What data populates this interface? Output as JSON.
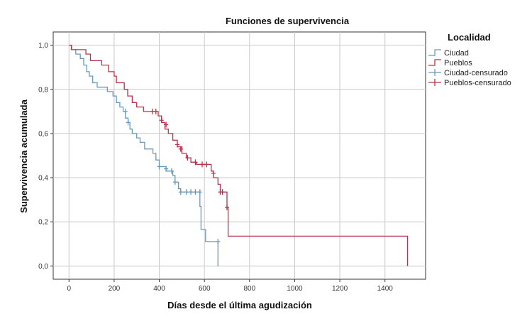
{
  "chart_data": {
    "type": "line",
    "title": "Funciones de supervivencia",
    "xlabel": "Días desde el última agudización",
    "ylabel": "Supervivencia acumulada",
    "xlim": [
      -70,
      1580
    ],
    "ylim": [
      -0.06,
      1.06
    ],
    "x_ticks": [
      "0",
      "200",
      "400",
      "600",
      "800",
      "1000",
      "1200",
      "1400"
    ],
    "y_ticks": [
      "0,0",
      "0,2",
      "0,4",
      "0,6",
      "0,8",
      "1,0"
    ],
    "grid": true,
    "legend": {
      "title": "Localidad",
      "position": "right",
      "entries": [
        "Ciudad",
        "Pueblos",
        "Ciudad-censurado",
        "Pueblos-censurado"
      ]
    },
    "series": [
      {
        "name": "Ciudad",
        "color": "#6699c2",
        "steps": [
          [
            0,
            1.0
          ],
          [
            12,
            0.98
          ],
          [
            30,
            0.96
          ],
          [
            50,
            0.94
          ],
          [
            65,
            0.91
          ],
          [
            78,
            0.88
          ],
          [
            90,
            0.86
          ],
          [
            105,
            0.83
          ],
          [
            125,
            0.81
          ],
          [
            170,
            0.79
          ],
          [
            195,
            0.77
          ],
          [
            210,
            0.74
          ],
          [
            225,
            0.72
          ],
          [
            240,
            0.7
          ],
          [
            250,
            0.67
          ],
          [
            262,
            0.65
          ],
          [
            270,
            0.62
          ],
          [
            280,
            0.6
          ],
          [
            300,
            0.58
          ],
          [
            315,
            0.56
          ],
          [
            335,
            0.53
          ],
          [
            372,
            0.51
          ],
          [
            385,
            0.48
          ],
          [
            400,
            0.45
          ],
          [
            430,
            0.43
          ],
          [
            460,
            0.41
          ],
          [
            470,
            0.38
          ],
          [
            485,
            0.35
          ],
          [
            495,
            0.335
          ],
          [
            580,
            0.27
          ],
          [
            585,
            0.165
          ],
          [
            605,
            0.11
          ],
          [
            660,
            0.0
          ]
        ],
        "end_x": 662,
        "censored": [
          [
            250,
            0.7
          ],
          [
            262,
            0.65
          ],
          [
            400,
            0.45
          ],
          [
            430,
            0.44
          ],
          [
            455,
            0.43
          ],
          [
            470,
            0.38
          ],
          [
            495,
            0.335
          ],
          [
            520,
            0.335
          ],
          [
            540,
            0.335
          ],
          [
            560,
            0.335
          ],
          [
            580,
            0.335
          ],
          [
            660,
            0.11
          ]
        ]
      },
      {
        "name": "Pueblos",
        "color": "#b8334b",
        "steps": [
          [
            0,
            1.0
          ],
          [
            10,
            0.98
          ],
          [
            75,
            0.96
          ],
          [
            95,
            0.93
          ],
          [
            145,
            0.91
          ],
          [
            175,
            0.88
          ],
          [
            200,
            0.86
          ],
          [
            210,
            0.83
          ],
          [
            245,
            0.8
          ],
          [
            260,
            0.77
          ],
          [
            280,
            0.74
          ],
          [
            300,
            0.72
          ],
          [
            330,
            0.7
          ],
          [
            395,
            0.68
          ],
          [
            410,
            0.65
          ],
          [
            425,
            0.62
          ],
          [
            440,
            0.6
          ],
          [
            460,
            0.57
          ],
          [
            480,
            0.54
          ],
          [
            500,
            0.51
          ],
          [
            520,
            0.49
          ],
          [
            540,
            0.47
          ],
          [
            565,
            0.46
          ],
          [
            630,
            0.43
          ],
          [
            640,
            0.4
          ],
          [
            660,
            0.37
          ],
          [
            670,
            0.335
          ],
          [
            700,
            0.265
          ],
          [
            705,
            0.135
          ],
          [
            1500,
            0.0
          ]
        ],
        "end_x": 1500,
        "censored": [
          [
            370,
            0.7
          ],
          [
            385,
            0.7
          ],
          [
            410,
            0.66
          ],
          [
            430,
            0.64
          ],
          [
            480,
            0.55
          ],
          [
            495,
            0.53
          ],
          [
            525,
            0.49
          ],
          [
            560,
            0.47
          ],
          [
            590,
            0.46
          ],
          [
            610,
            0.46
          ],
          [
            640,
            0.42
          ],
          [
            670,
            0.335
          ],
          [
            680,
            0.335
          ],
          [
            700,
            0.265
          ]
        ]
      }
    ]
  }
}
